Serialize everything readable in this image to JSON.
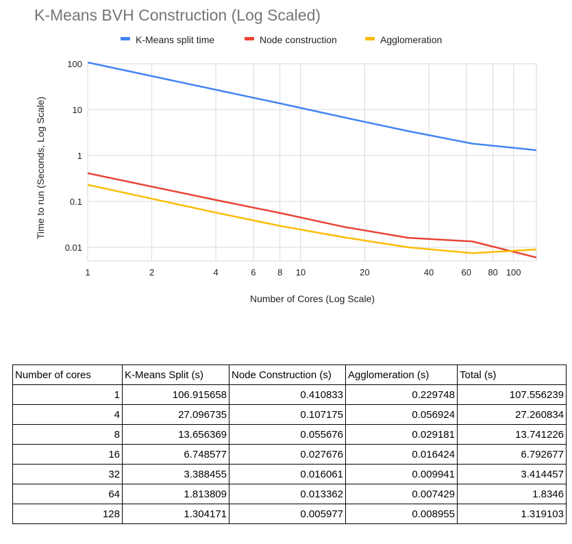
{
  "chart_data": {
    "type": "line",
    "title": "K-Means BVH Construction (Log Scaled)",
    "xlabel": "Number of Cores (Log Scale)",
    "ylabel": "Time to run (Seconds, Log Scale)",
    "x_scale": "log",
    "y_scale": "log",
    "xlim": [
      1,
      128
    ],
    "ylim": [
      0.005,
      100
    ],
    "x_ticks": [
      "1",
      "2",
      "4",
      "6",
      "8",
      "10",
      "20",
      "40",
      "60",
      "80",
      "100"
    ],
    "x_tick_values": [
      1,
      2,
      4,
      6,
      8,
      10,
      20,
      40,
      60,
      80,
      100
    ],
    "y_ticks": [
      "100",
      "10",
      "1",
      "0.1",
      "0.01"
    ],
    "y_tick_values": [
      100,
      10,
      1,
      0.1,
      0.01
    ],
    "grid": true,
    "legend_position": "top",
    "x": [
      1,
      4,
      8,
      16,
      32,
      64,
      128
    ],
    "series": [
      {
        "name": "K-Means split time",
        "color": "#4285f4",
        "values": [
          106.915658,
          27.096735,
          13.656369,
          6.748577,
          3.388455,
          1.813809,
          1.304171
        ]
      },
      {
        "name": "Node construction",
        "color": "#ea4335",
        "values": [
          0.410833,
          0.107175,
          0.055676,
          0.027676,
          0.016061,
          0.013362,
          0.005977
        ]
      },
      {
        "name": "Agglomeration",
        "color": "#fbbc04",
        "values": [
          0.229748,
          0.056924,
          0.029181,
          0.016424,
          0.009941,
          0.007429,
          0.008955
        ]
      }
    ]
  },
  "table": {
    "headers": [
      "Number of cores",
      "K-Means Split (s)",
      "Node Construction (s)",
      "Agglomeration (s)",
      "Total (s)"
    ],
    "rows": [
      [
        "1",
        "106.915658",
        "0.410833",
        "0.229748",
        "107.556239"
      ],
      [
        "4",
        "27.096735",
        "0.107175",
        "0.056924",
        "27.260834"
      ],
      [
        "8",
        "13.656369",
        "0.055676",
        "0.029181",
        "13.741226"
      ],
      [
        "16",
        "6.748577",
        "0.027676",
        "0.016424",
        "6.792677"
      ],
      [
        "32",
        "3.388455",
        "0.016061",
        "0.009941",
        "3.414457"
      ],
      [
        "64",
        "1.813809",
        "0.013362",
        "0.007429",
        "1.8346"
      ],
      [
        "128",
        "1.304171",
        "0.005977",
        "0.008955",
        "1.319103"
      ]
    ]
  }
}
